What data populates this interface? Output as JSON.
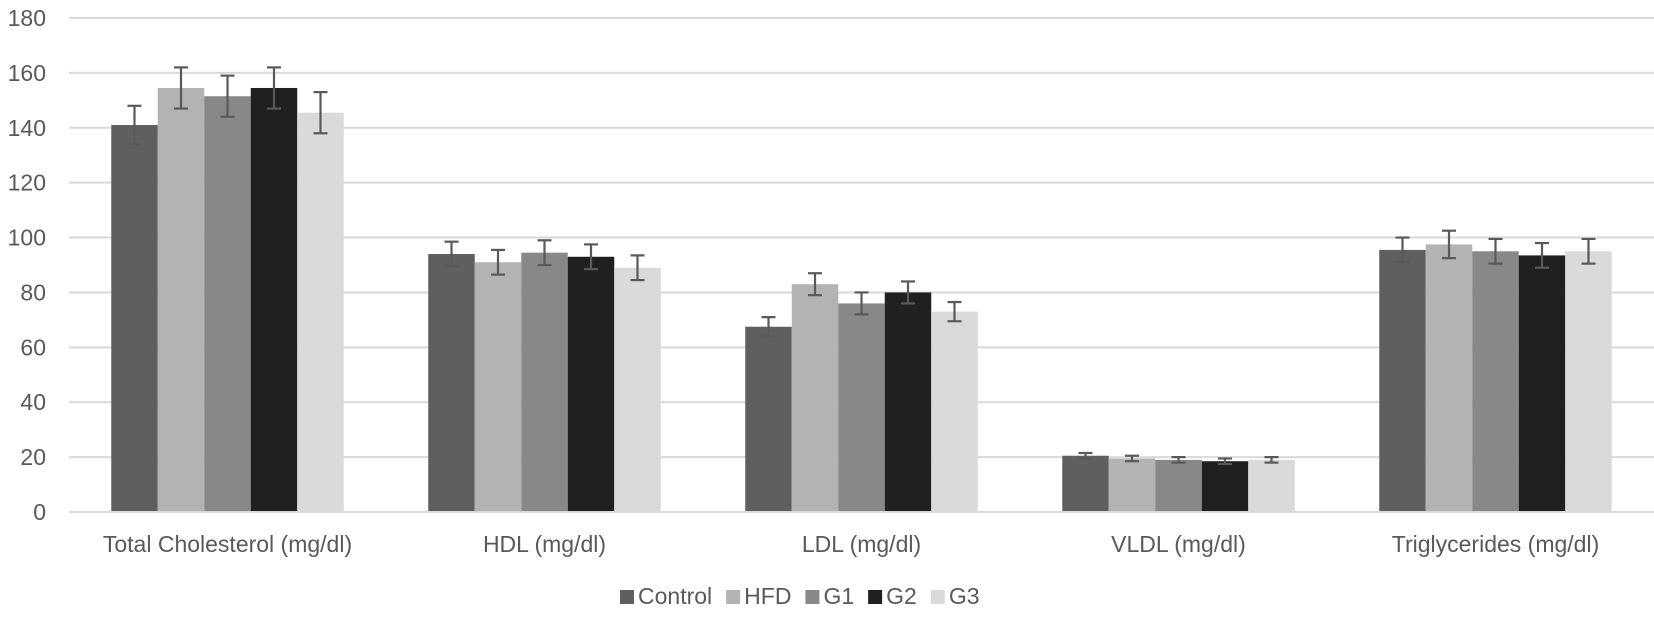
{
  "chart_data": {
    "type": "bar",
    "title": "",
    "xlabel": "",
    "ylabel": "",
    "ylim": [
      0,
      180
    ],
    "yticks": [
      0,
      20,
      40,
      60,
      80,
      100,
      120,
      140,
      160,
      180
    ],
    "grid": true,
    "legend_position": "bottom",
    "categories": [
      "Total Cholesterol (mg/dl)",
      "HDL (mg/dl)",
      "LDL (mg/dl)",
      "VLDL (mg/dl)",
      "Triglycerides (mg/dl)"
    ],
    "series": [
      {
        "name": "Control",
        "color": "#5f5f5f",
        "values": [
          141,
          94,
          67.5,
          20.5,
          95.5
        ],
        "errors": [
          7,
          4.5,
          3.5,
          1,
          4.5
        ]
      },
      {
        "name": "HFD",
        "color": "#b3b3b3",
        "values": [
          154.5,
          91,
          83,
          19.5,
          97.5
        ],
        "errors": [
          7.5,
          4.5,
          4,
          1,
          5
        ]
      },
      {
        "name": "G1",
        "color": "#888888",
        "values": [
          151.5,
          94.5,
          76,
          19,
          95
        ],
        "errors": [
          7.5,
          4.5,
          4,
          1,
          4.5
        ]
      },
      {
        "name": "G2",
        "color": "#202020",
        "values": [
          154.5,
          93,
          80,
          18.5,
          93.5
        ],
        "errors": [
          7.5,
          4.5,
          4,
          1,
          4.5
        ]
      },
      {
        "name": "G3",
        "color": "#dadada",
        "values": [
          145.5,
          89,
          73,
          19,
          95
        ],
        "errors": [
          7.5,
          4.5,
          3.5,
          1,
          4.5
        ]
      }
    ],
    "error_bar_color": "#595959"
  }
}
